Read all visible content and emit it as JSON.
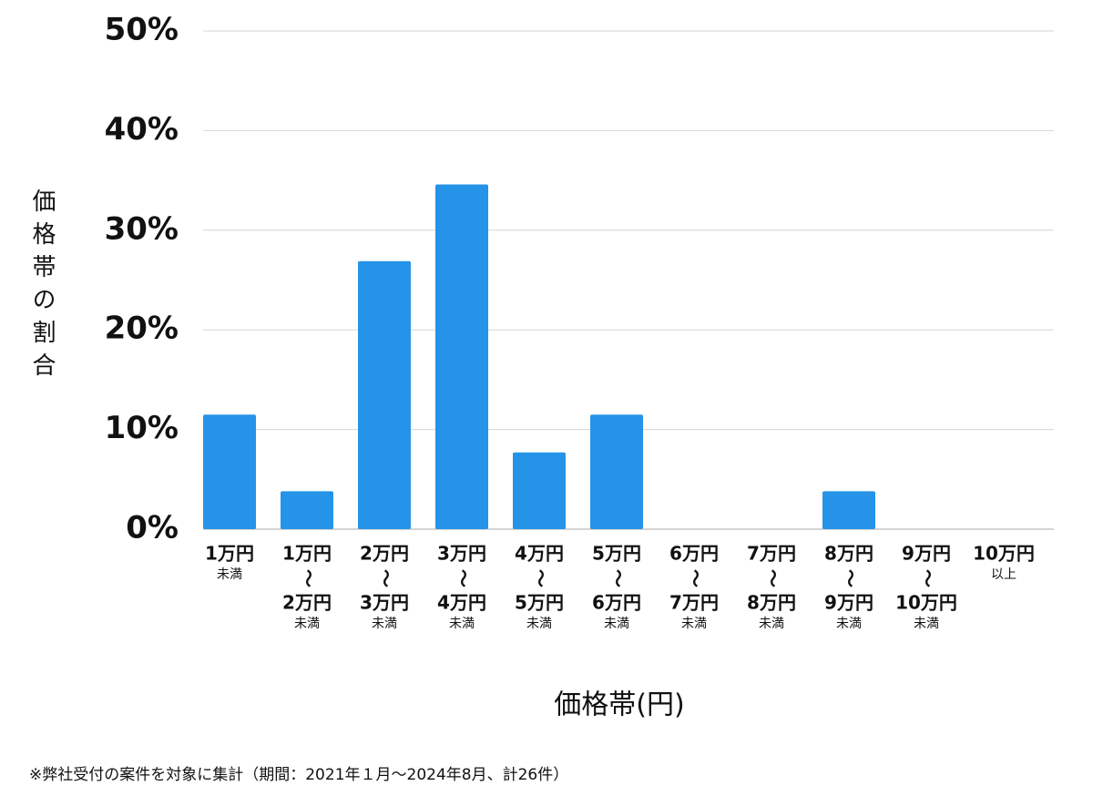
{
  "chart_data": {
    "type": "bar",
    "x_label": "価格帯(円)",
    "y_label": "価格帯の割合",
    "note": "※弊社受付の案件を対象に集計（期間：2021年１月〜2024年8月、計26件）",
    "categories": [
      [
        "1万円",
        "未満"
      ],
      [
        "1万円",
        "〜",
        "2万円",
        "未満"
      ],
      [
        "2万円",
        "〜",
        "3万円",
        "未満"
      ],
      [
        "3万円",
        "〜",
        "4万円",
        "未満"
      ],
      [
        "4万円",
        "〜",
        "5万円",
        "未満"
      ],
      [
        "5万円",
        "〜",
        "6万円",
        "未満"
      ],
      [
        "6万円",
        "〜",
        "7万円",
        "未満"
      ],
      [
        "7万円",
        "〜",
        "8万円",
        "未満"
      ],
      [
        "8万円",
        "〜",
        "9万円",
        "未満"
      ],
      [
        "9万円",
        "〜",
        "10万円",
        "未満"
      ],
      [
        "10万円",
        "以上"
      ]
    ],
    "values": [
      11.5,
      3.8,
      26.9,
      34.6,
      7.7,
      11.5,
      0,
      0,
      3.8,
      0,
      0
    ],
    "color": "#2594e8",
    "ylim": [
      0,
      50
    ],
    "yticks": [
      {
        "value": 0,
        "label": "0%"
      },
      {
        "value": 10,
        "label": "10%"
      },
      {
        "value": 20,
        "label": "20%"
      },
      {
        "value": 30,
        "label": "30%"
      },
      {
        "value": 40,
        "label": "40%"
      },
      {
        "value": 50,
        "label": "50%"
      }
    ],
    "grid": true
  }
}
